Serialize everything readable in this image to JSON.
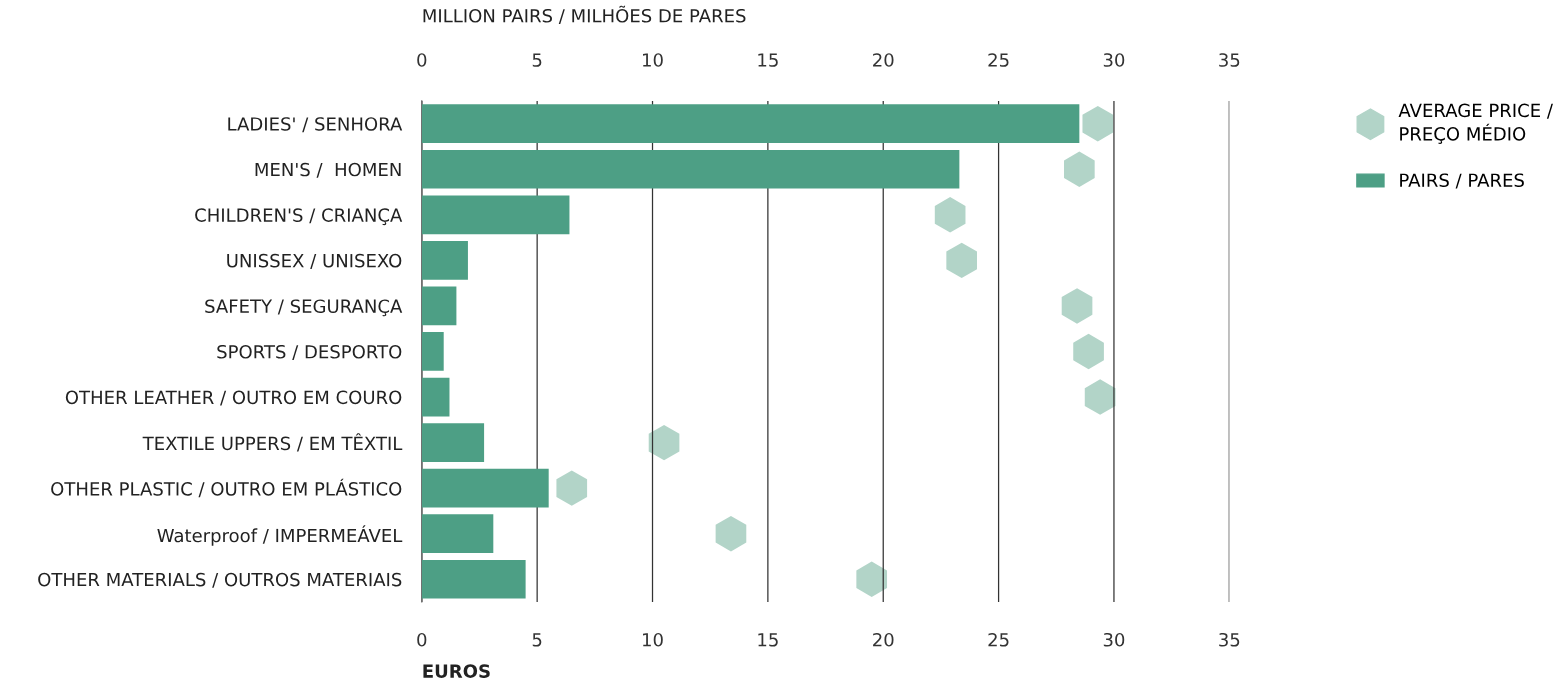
{
  "chart_data": {
    "type": "bar",
    "orientation": "horizontal",
    "categories": [
      "LADIES' / SENHORA",
      "MEN'S /  HOMEN",
      "CHILDREN'S / CRIANÇA",
      "UNISSEX / UNISEXO",
      "SAFETY / SEGURANÇA",
      "SPORTS / DESPORTO",
      "OTHER LEATHER / OUTRO EM COURO",
      "TEXTILE UPPERS / EM TÊXTIL",
      "OTHER PLASTIC / OUTRO EM PLÁSTICO",
      "Waterproof / IMPERMEÁVEL",
      "OTHER MATERIALS / OUTROS MATERIAIS"
    ],
    "series": [
      {
        "name": "AVERAGE PRICE / PREÇO MÉDIO",
        "type": "scatter",
        "color": "#b2d4c8",
        "values": [
          29.3,
          28.5,
          22.9,
          23.4,
          28.4,
          28.9,
          29.4,
          10.5,
          6.5,
          13.4,
          19.5
        ]
      },
      {
        "name": "PAIRS / PARES",
        "axis": "x2",
        "color": "#4d9f85",
        "values": [
          28.5,
          23.3,
          6.4,
          2.0,
          1.5,
          0.95,
          1.2,
          2.7,
          5.5,
          3.1,
          4.5
        ]
      }
    ],
    "xlabel": "EUROS",
    "x2label": "MILLION PAIRS / MILHÕES DE PARES",
    "xlim": [
      0,
      35
    ],
    "xticks": [
      0,
      5,
      10,
      15,
      20,
      25,
      30,
      35
    ],
    "x2lim": [
      0,
      35
    ],
    "x2ticks": [
      0,
      5,
      10,
      15,
      20,
      25,
      30,
      35
    ],
    "grid": "x",
    "legend": "top right"
  }
}
